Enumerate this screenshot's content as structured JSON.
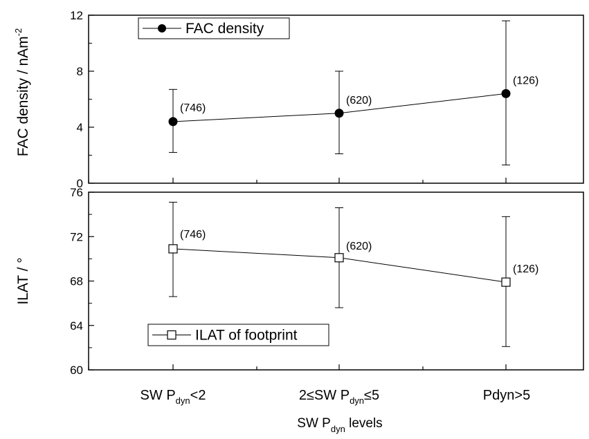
{
  "chart_data": [
    {
      "type": "line",
      "panel": "top",
      "ylabel": "FAC density / nAm",
      "ylabel_sup": "-2",
      "ylim": [
        0,
        12
      ],
      "yticks": [
        "0",
        "4",
        "8",
        "12"
      ],
      "legend": {
        "label": "FAC density",
        "marker": "filled-circle",
        "placement": "top-left"
      },
      "series": [
        {
          "name": "FAC density",
          "values": [
            4.4,
            5.0,
            6.4
          ],
          "err_low": [
            2.2,
            2.1,
            1.3
          ],
          "err_high": [
            6.7,
            8.0,
            11.6
          ],
          "counts": [
            "(746)",
            "(620)",
            "(126)"
          ]
        }
      ]
    },
    {
      "type": "line",
      "panel": "bottom",
      "ylabel": "ILAT / °",
      "ylim": [
        60,
        76
      ],
      "yticks": [
        "60",
        "64",
        "68",
        "72",
        "76"
      ],
      "legend": {
        "label": "ILAT of footprint",
        "marker": "open-square",
        "placement": "bottom-left"
      },
      "series": [
        {
          "name": "ILAT of footprint",
          "values": [
            70.9,
            70.1,
            67.9
          ],
          "err_low": [
            66.6,
            65.6,
            62.1
          ],
          "err_high": [
            75.1,
            74.6,
            73.8
          ],
          "counts": [
            "(746)",
            "(620)",
            "(126)"
          ]
        }
      ]
    }
  ],
  "x_axis": {
    "categories": [
      {
        "pre": "SW P",
        "sub": "dyn",
        "post": "<2"
      },
      {
        "pre": "2≤SW P",
        "sub": "dyn",
        "post": "≤5"
      },
      {
        "pre": "Pdyn>5",
        "sub": "",
        "post": ""
      }
    ],
    "label": {
      "pre": "SW P",
      "sub": "dyn",
      "post": " levels"
    }
  }
}
